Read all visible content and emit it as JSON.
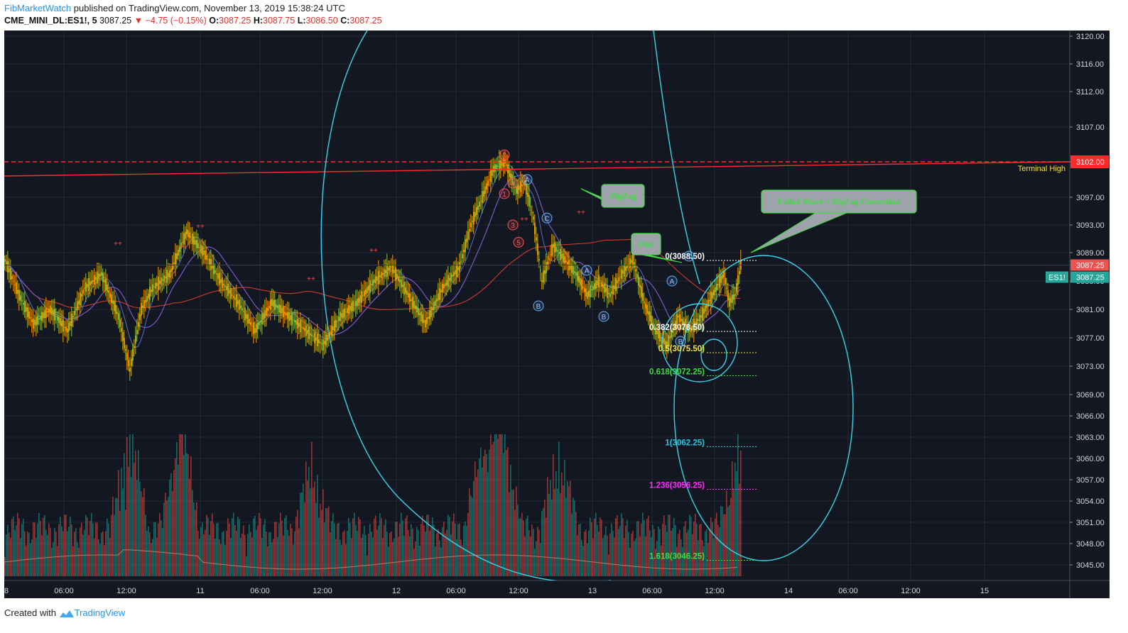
{
  "header": {
    "author": "FibMarketWatch",
    "published_text": "published on TradingView.com, November 13, 2019 15:38:24 UTC",
    "symbol": "CME_MINI_DL:ES1!, 5",
    "last": "3087.25",
    "change": "−4.75 (−0.15%)",
    "o_label": "O:",
    "o_value": "3087.25",
    "h_label": "H:",
    "h_value": "3087.75",
    "l_label": "L:",
    "l_value": "3086.50",
    "c_label": "C:",
    "c_value": "3087.25"
  },
  "footer": {
    "created_with": "Created with",
    "brand": "TradingView"
  },
  "chart_data": {
    "type": "candlestick",
    "y_ticks": [
      3045.0,
      3048.0,
      3051.0,
      3054.0,
      3057.0,
      3060.0,
      3063.0,
      3066.0,
      3069.0,
      3073.0,
      3077.0,
      3081.0,
      3085.0,
      3089.0,
      3093.0,
      3097.0,
      3102.0,
      3107.0,
      3112.0,
      3116.0,
      3120.0
    ],
    "y_tick_labels": [
      "3045.00",
      "3048.00",
      "3051.00",
      "3054.00",
      "3057.00",
      "3060.00",
      "3063.00",
      "3066.00",
      "3069.00",
      "3073.00",
      "3077.00",
      "3081.00",
      "3085.00",
      "3089.00",
      "3093.00",
      "3097.00",
      "3102.00",
      "3107.00",
      "3112.00",
      "3116.00",
      "3120.00"
    ],
    "x_tick_labels": [
      "8",
      "06:00",
      "12:00",
      "11",
      "06:00",
      "12:00",
      "12",
      "06:00",
      "12:00",
      "13",
      "06:00",
      "12:00",
      "14",
      "06:00",
      "12:00",
      "15"
    ],
    "price_path": [
      [
        0,
        3088
      ],
      [
        5,
        3083
      ],
      [
        10,
        3079
      ],
      [
        16,
        3081
      ],
      [
        22,
        3078
      ],
      [
        28,
        3084
      ],
      [
        34,
        3086
      ],
      [
        40,
        3080
      ],
      [
        44,
        3072.5
      ],
      [
        48,
        3081
      ],
      [
        52,
        3084
      ],
      [
        58,
        3086
      ],
      [
        64,
        3092
      ],
      [
        70,
        3089
      ],
      [
        76,
        3085
      ],
      [
        82,
        3082
      ],
      [
        88,
        3078
      ],
      [
        94,
        3082
      ],
      [
        100,
        3080
      ],
      [
        106,
        3078
      ],
      [
        112,
        3076
      ],
      [
        118,
        3080
      ],
      [
        124,
        3082
      ],
      [
        130,
        3085
      ],
      [
        136,
        3087
      ],
      [
        142,
        3083
      ],
      [
        148,
        3079
      ],
      [
        154,
        3084
      ],
      [
        160,
        3087
      ],
      [
        164,
        3093
      ],
      [
        168,
        3097
      ],
      [
        172,
        3101
      ],
      [
        176,
        3102
      ],
      [
        180,
        3098
      ],
      [
        183,
        3099
      ],
      [
        186,
        3094
      ],
      [
        189,
        3085
      ],
      [
        193,
        3090
      ],
      [
        197,
        3088
      ],
      [
        201,
        3086
      ],
      [
        205,
        3083
      ],
      [
        209,
        3085
      ],
      [
        213,
        3083
      ],
      [
        217,
        3086
      ],
      [
        221,
        3088
      ],
      [
        225,
        3082
      ],
      [
        229,
        3078
      ],
      [
        233,
        3076
      ],
      [
        237,
        3080
      ],
      [
        241,
        3078
      ],
      [
        245,
        3080
      ],
      [
        249,
        3083
      ],
      [
        253,
        3086
      ],
      [
        255,
        3082
      ],
      [
        257,
        3083
      ],
      [
        259,
        3087.25
      ]
    ],
    "volume_peaks": [
      [
        44,
        18
      ],
      [
        62,
        20
      ],
      [
        108,
        12
      ],
      [
        168,
        14
      ],
      [
        175,
        20
      ],
      [
        195,
        14
      ],
      [
        258,
        14
      ]
    ],
    "horizontal_line": {
      "value": 3102.0,
      "label": "3102.00",
      "name": "Terminal High",
      "color": "#ff2b2b"
    },
    "trend_line": {
      "from": [
        0,
        3100.0
      ],
      "to": [
        375,
        3102.0
      ],
      "color": "#ff2b2b"
    },
    "last_price": {
      "value": 3087.25,
      "label": "3087.25",
      "badge": "ES1!",
      "badge_color": "#26a69a",
      "price_color": "#ef5350"
    },
    "fib_levels": [
      {
        "label": "0(3088.50)",
        "value": 3088.5,
        "color": "#ffffff"
      },
      {
        "label": "0.382(3078.50)",
        "value": 3078.5,
        "color": "#ffffff"
      },
      {
        "label": "0.5(3075.50)",
        "value": 3075.5,
        "color": "#f5e23b"
      },
      {
        "label": "0.618(3072.25)",
        "value": 3072.25,
        "color": "#3cde3c"
      },
      {
        "label": "1(3062.25)",
        "value": 3062.25,
        "color": "#24c7e0"
      },
      {
        "label": "1.236(3056.25)",
        "value": 3056.25,
        "color": "#ff2bff"
      },
      {
        "label": "1.618(3046.25)",
        "value": 3046.25,
        "color": "#3cde3c"
      }
    ],
    "wave_labels": [
      {
        "text": "2",
        "t": 176,
        "v": 3103.0,
        "style": "red"
      },
      {
        "text": "1",
        "t": 176,
        "v": 3097.5,
        "style": "red"
      },
      {
        "text": "4",
        "t": 179,
        "v": 3099.0,
        "style": "red"
      },
      {
        "text": "3",
        "t": 179,
        "v": 3093.0,
        "style": "red"
      },
      {
        "text": "5",
        "t": 181,
        "v": 3090.5,
        "style": "red"
      },
      {
        "text": "A",
        "t": 184,
        "v": 3099.5,
        "style": "blue"
      },
      {
        "text": "C",
        "t": 191,
        "v": 3094.0,
        "style": "blue"
      },
      {
        "text": "B",
        "t": 188,
        "v": 3081.5,
        "style": "blue"
      },
      {
        "text": "A",
        "t": 205,
        "v": 3086.5,
        "style": "blue"
      },
      {
        "text": "B",
        "t": 211,
        "v": 3080.0,
        "style": "blue"
      },
      {
        "text": "A",
        "t": 235,
        "v": 3085.0,
        "style": "blue"
      },
      {
        "text": "B",
        "t": 238,
        "v": 3076.5,
        "style": "blue"
      },
      {
        "text": "C",
        "t": 241,
        "v": 3088.5,
        "style": "blue"
      }
    ],
    "callouts": [
      {
        "text": "ZigZag"
      },
      {
        "text": "Flat"
      },
      {
        "text": "Failed Wave = ZigZag Correction"
      }
    ],
    "colors": {
      "background": "#131722",
      "grid": "#232733",
      "cyan": "#3ad4e8"
    }
  }
}
